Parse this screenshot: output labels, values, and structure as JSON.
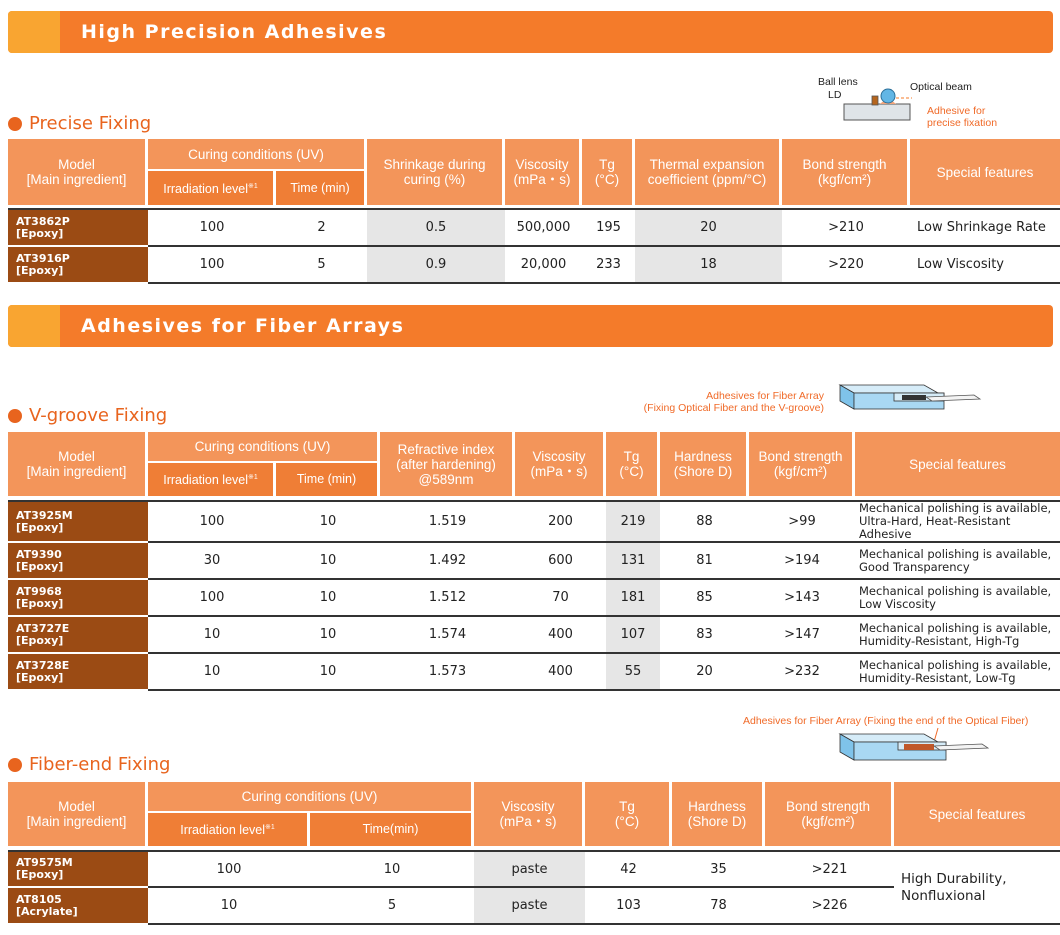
{
  "banners": {
    "high_precision": "High Precision Adhesives",
    "fiber_arrays": "Adhesives for Fiber Arrays"
  },
  "sections": {
    "precise": "Precise Fixing",
    "vgroove": "V-groove Fixing",
    "fiberend": "Fiber-end Fixing"
  },
  "headers": {
    "model_1": "Model",
    "model_2": "[Main ingredient]",
    "curing": "Curing conditions (UV)",
    "irradiation": "Irradiation level",
    "note": "※1",
    "time": "Time (min)",
    "time_nospace": "Time(min)",
    "shrink_1": "Shrinkage during",
    "shrink_2": "curing (%)",
    "visc_1": "Viscosity",
    "visc_2": "(mPa・s)",
    "tg_1": "Tg",
    "tg_2": "(°C)",
    "cte_1": "Thermal expansion",
    "cte_2": "coefficient (ppm/°C)",
    "bond_1": "Bond strength",
    "bond_2": "(kgf/cm²)",
    "features": "Special features",
    "ri_1": "Refractive index",
    "ri_2": "(after hardening)",
    "ri_3": "@589nm",
    "hard_1": "Hardness",
    "hard_2": "(Shore D)"
  },
  "diagram_labels": {
    "ball_lens": "Ball lens",
    "ld": "LD",
    "optical_beam": "Optical beam",
    "adhesive_1": "Adhesive for",
    "adhesive_2": "precise fixation",
    "fa_1": "Adhesives for Fiber Array",
    "fa_2": "(Fixing Optical Fiber and the V-groove)",
    "fe": "Adhesives for Fiber Array  (Fixing the end of the Optical Fiber)"
  },
  "precise_rows": [
    {
      "model": "AT3862P",
      "ing": "[Epoxy]",
      "irr": "100",
      "time": "2",
      "shrink": "0.5",
      "visc": "500,000",
      "tg": "195",
      "cte": "20",
      "bond": ">210",
      "feat": "Low Shrinkage Rate"
    },
    {
      "model": "AT3916P",
      "ing": "[Epoxy]",
      "irr": "100",
      "time": "5",
      "shrink": "0.9",
      "visc": "20,000",
      "tg": "233",
      "cte": "18",
      "bond": ">220",
      "feat": "Low Viscosity"
    }
  ],
  "vgroove_rows": [
    {
      "model": "AT3925M",
      "ing": "[Epoxy]",
      "irr": "100",
      "time": "10",
      "ri": "1.519",
      "visc": "200",
      "tg": "219",
      "hard": "88",
      "bond": ">99",
      "f1": "Mechanical polishing is available,",
      "f2": "Ultra-Hard, Heat-Resistant Adhesive"
    },
    {
      "model": "AT9390",
      "ing": "[Epoxy]",
      "irr": "30",
      "time": "10",
      "ri": "1.492",
      "visc": "600",
      "tg": "131",
      "hard": "81",
      "bond": ">194",
      "f1": "Mechanical polishing is available,",
      "f2": "Good Transparency"
    },
    {
      "model": "AT9968",
      "ing": "[Epoxy]",
      "irr": "100",
      "time": "10",
      "ri": "1.512",
      "visc": "70",
      "tg": "181",
      "hard": "85",
      "bond": ">143",
      "f1": "Mechanical polishing is available,",
      "f2": "Low Viscosity"
    },
    {
      "model": "AT3727E",
      "ing": "[Epoxy]",
      "irr": "10",
      "time": "10",
      "ri": "1.574",
      "visc": "400",
      "tg": "107",
      "hard": "83",
      "bond": ">147",
      "f1": "Mechanical polishing is available,",
      "f2": "Humidity-Resistant, High-Tg"
    },
    {
      "model": "AT3728E",
      "ing": "[Epoxy]",
      "irr": "10",
      "time": "10",
      "ri": "1.573",
      "visc": "400",
      "tg": "55",
      "hard": "20",
      "bond": ">232",
      "f1": "Mechanical polishing is available,",
      "f2": "Humidity-Resistant, Low-Tg"
    }
  ],
  "fiberend_rows": [
    {
      "model": "AT9575M",
      "ing": "[Epoxy]",
      "irr": "100",
      "time": "10",
      "visc": "paste",
      "tg": "42",
      "hard": "35",
      "bond": ">221"
    },
    {
      "model": "AT8105",
      "ing": "[Acrylate]",
      "irr": "10",
      "time": "5",
      "visc": "paste",
      "tg": "103",
      "hard": "78",
      "bond": ">226"
    }
  ],
  "fiberend_feature_1": "High Durability,",
  "fiberend_feature_2": "Nonfluxional"
}
